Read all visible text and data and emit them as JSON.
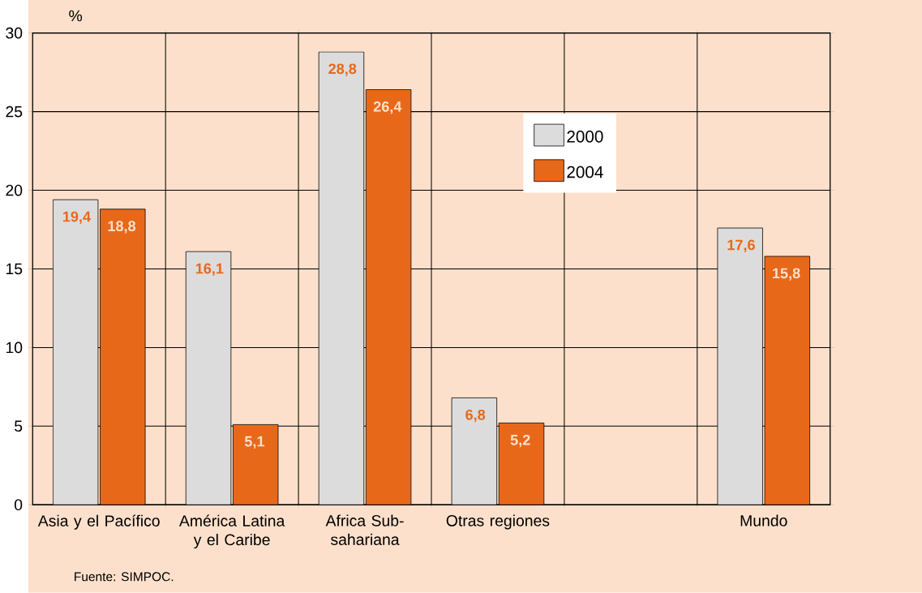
{
  "chart_data": {
    "type": "bar",
    "ylabel": "%",
    "categories": [
      "Asia y el Pacífico",
      "América Latina y el Caribe",
      "Africa Sub-sahariana",
      "Otras regiones",
      null,
      "Mundo"
    ],
    "series": [
      {
        "name": "2000",
        "color": "#dcdcdc",
        "values": [
          19.4,
          16.1,
          28.8,
          6.8,
          null,
          17.6
        ],
        "value_labels": [
          "19,4",
          "16,1",
          "28,8",
          "6,8",
          null,
          "17,6"
        ]
      },
      {
        "name": "2004",
        "color": "#e8681a",
        "values": [
          18.8,
          5.1,
          26.4,
          5.2,
          null,
          15.8
        ],
        "value_labels": [
          "18,8",
          "5,1",
          "26,4",
          "5,2",
          null,
          "15,8"
        ]
      }
    ],
    "ylim": [
      0,
      30
    ],
    "yticks": [
      0,
      5,
      10,
      15,
      20,
      25,
      30
    ],
    "grid": true,
    "legend": "top right",
    "annotations": [
      "Fuente: SIMPOC."
    ]
  }
}
